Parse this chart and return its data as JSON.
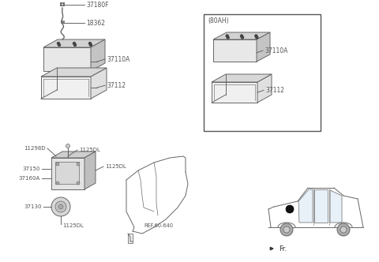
{
  "bg_color": "#ffffff",
  "lc": "#666666",
  "tc": "#555555",
  "fig_w": 4.8,
  "fig_h": 3.32,
  "dpi": 100,
  "box_label": "(80AH)",
  "fr_label": "Fr.",
  "ref_label": "REF.60-640",
  "parts": {
    "37110A": "37110A",
    "37180F": "37180F",
    "18362": "18362",
    "37112": "37112",
    "37150": "37150",
    "37130": "37130",
    "11298D": "11298D",
    "1125DL": "1125DL",
    "37160A": "37160A"
  }
}
